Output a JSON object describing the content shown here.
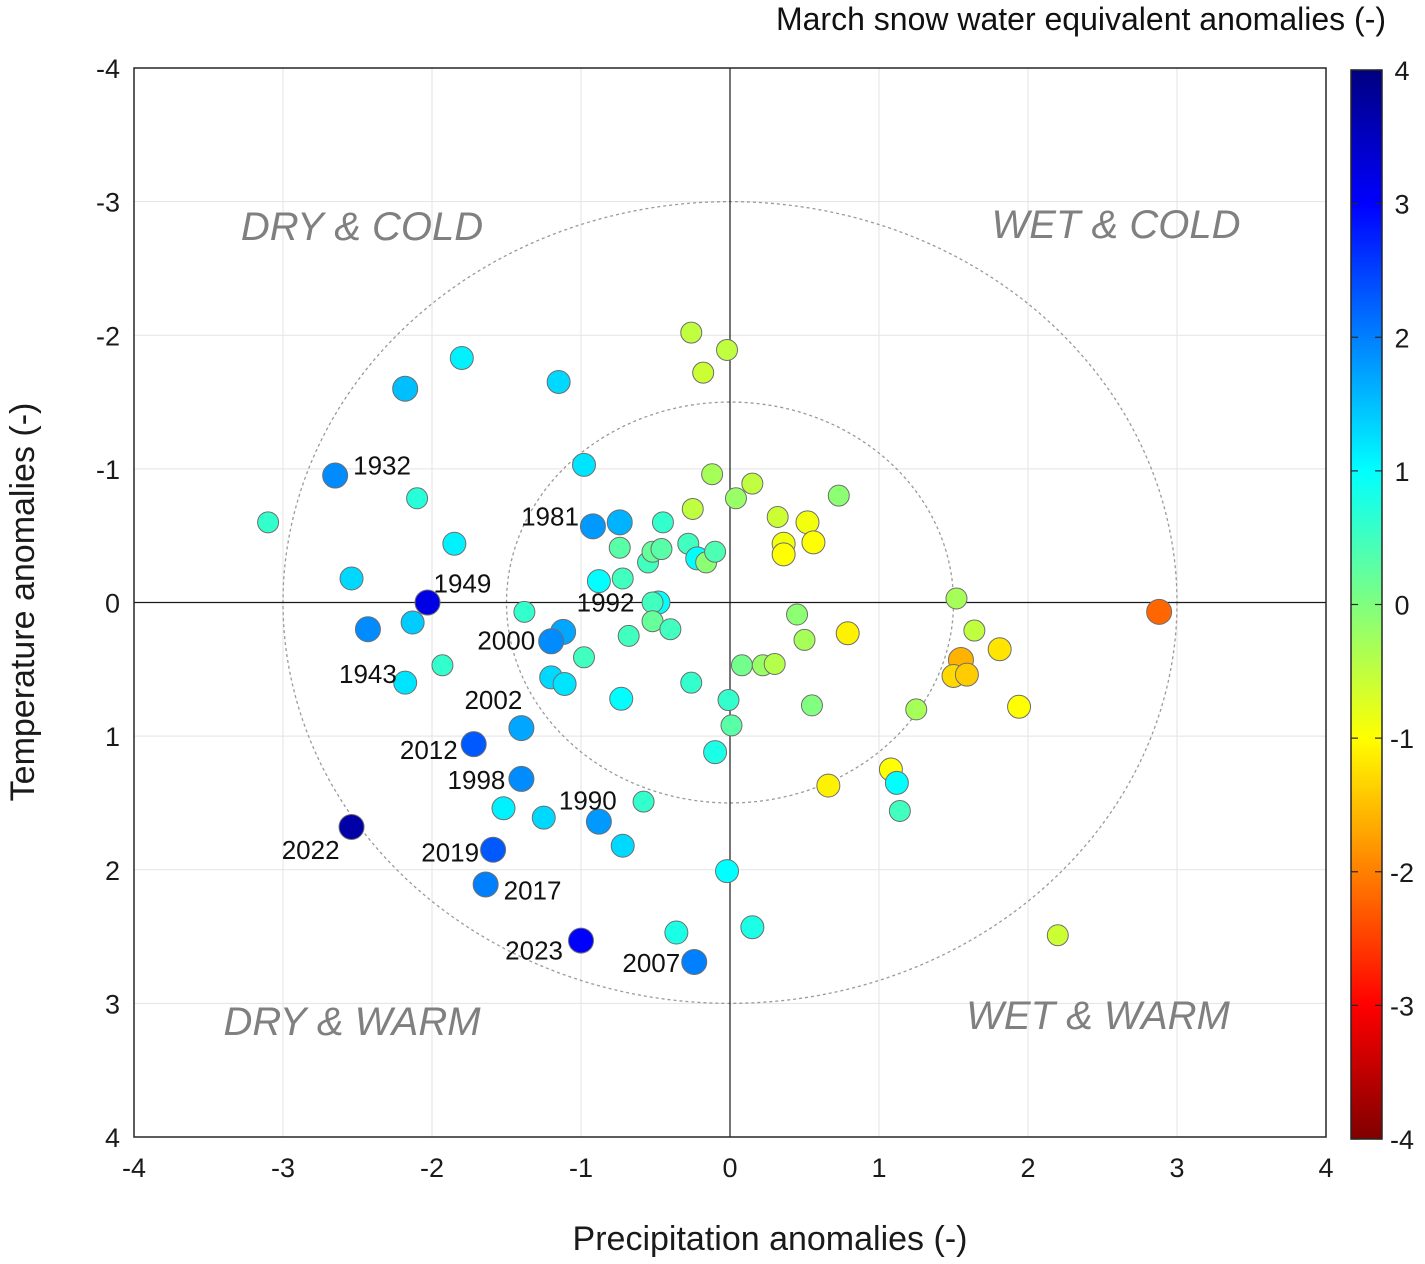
{
  "chart_data": {
    "type": "scatter",
    "xlabel": "Precipitation anomalies (-)",
    "ylabel": "Temperature anomalies (-)",
    "xlim": [
      -4,
      4
    ],
    "ylim": [
      -4,
      4
    ],
    "y_axis_inverted": true,
    "grid": true,
    "xticks": [
      "-4",
      "-3",
      "-2",
      "-1",
      "0",
      "1",
      "2",
      "3",
      "4"
    ],
    "yticks": [
      "-4",
      "-3",
      "-2",
      "-1",
      "0",
      "1",
      "2",
      "3",
      "4"
    ],
    "reference_circles_radius": [
      1.5,
      3
    ],
    "colorbar": {
      "title": "March snow water equivalent anomalies (-)",
      "range": [
        -4,
        4
      ],
      "colormap": "jet",
      "ticks": [
        "4",
        "3",
        "2",
        "1",
        "0",
        "-1",
        "-2",
        "-3",
        "-4"
      ]
    },
    "quadrant_labels": [
      "DRY & COLD",
      "WET & COLD",
      "DRY & WARM",
      "WET & WARM"
    ],
    "annotations": [
      {
        "text": "1932",
        "x": -2.65,
        "y": -0.95
      },
      {
        "text": "1949",
        "x": -2.03,
        "y": 0.0
      },
      {
        "text": "1943",
        "x": -2.43,
        "y": 0.2
      },
      {
        "text": "1981",
        "x": -0.92,
        "y": -0.57
      },
      {
        "text": "1992",
        "x": -0.48,
        "y": 0.0
      },
      {
        "text": "2000",
        "x": -1.2,
        "y": 0.29
      },
      {
        "text": "2002",
        "x": -1.4,
        "y": 0.94
      },
      {
        "text": "2012",
        "x": -1.72,
        "y": 1.06
      },
      {
        "text": "1998",
        "x": -1.4,
        "y": 1.32
      },
      {
        "text": "1990",
        "x": -0.88,
        "y": 1.64
      },
      {
        "text": "2022",
        "x": -2.54,
        "y": 1.68
      },
      {
        "text": "2019",
        "x": -1.59,
        "y": 1.85
      },
      {
        "text": "2017",
        "x": -1.64,
        "y": 2.11
      },
      {
        "text": "2023",
        "x": -1.0,
        "y": 2.53
      },
      {
        "text": "2007",
        "x": -0.24,
        "y": 2.69
      }
    ],
    "points": [
      {
        "x": -3.1,
        "y": -0.6,
        "c": -0.6
      },
      {
        "x": -2.65,
        "y": -0.95,
        "c": -1.9
      },
      {
        "x": -2.54,
        "y": -0.18,
        "c": -1.3
      },
      {
        "x": -2.18,
        "y": -1.6,
        "c": -1.5
      },
      {
        "x": -2.1,
        "y": -0.78,
        "c": -0.7
      },
      {
        "x": -1.8,
        "y": -1.83,
        "c": -1.1
      },
      {
        "x": -1.85,
        "y": -0.44,
        "c": -1.1
      },
      {
        "x": -2.03,
        "y": 0.0,
        "c": -3.2
      },
      {
        "x": -2.43,
        "y": 0.2,
        "c": -1.9
      },
      {
        "x": -2.13,
        "y": 0.15,
        "c": -1.4
      },
      {
        "x": -2.18,
        "y": 0.6,
        "c": -1.2
      },
      {
        "x": -1.93,
        "y": 0.47,
        "c": -0.6
      },
      {
        "x": -1.15,
        "y": -1.65,
        "c": -1.3
      },
      {
        "x": -0.98,
        "y": -1.03,
        "c": -1.2
      },
      {
        "x": -0.92,
        "y": -0.57,
        "c": -1.8
      },
      {
        "x": -0.74,
        "y": -0.6,
        "c": -1.6
      },
      {
        "x": -0.74,
        "y": -0.41,
        "c": -0.3
      },
      {
        "x": -0.45,
        "y": -0.6,
        "c": -0.6
      },
      {
        "x": -0.88,
        "y": -0.16,
        "c": -1.0
      },
      {
        "x": -0.72,
        "y": -0.18,
        "c": -0.5
      },
      {
        "x": -0.55,
        "y": -0.3,
        "c": -0.5
      },
      {
        "x": -0.52,
        "y": -0.38,
        "c": -0.2
      },
      {
        "x": -0.46,
        "y": -0.4,
        "c": -0.3
      },
      {
        "x": -0.48,
        "y": 0.0,
        "c": -1.0
      },
      {
        "x": -0.52,
        "y": 0.0,
        "c": -0.5
      },
      {
        "x": -0.52,
        "y": 0.14,
        "c": -0.2
      },
      {
        "x": -0.4,
        "y": 0.2,
        "c": -0.5
      },
      {
        "x": -0.68,
        "y": 0.25,
        "c": -0.5
      },
      {
        "x": -1.38,
        "y": 0.07,
        "c": -0.6
      },
      {
        "x": -1.12,
        "y": 0.22,
        "c": -1.7
      },
      {
        "x": -1.2,
        "y": 0.29,
        "c": -1.9
      },
      {
        "x": -0.98,
        "y": 0.41,
        "c": -0.5
      },
      {
        "x": -1.2,
        "y": 0.56,
        "c": -1.3
      },
      {
        "x": -1.11,
        "y": 0.61,
        "c": -1.2
      },
      {
        "x": -0.73,
        "y": 0.72,
        "c": -1.0
      },
      {
        "x": -1.4,
        "y": 0.94,
        "c": -1.7
      },
      {
        "x": -1.72,
        "y": 1.06,
        "c": -2.3
      },
      {
        "x": -1.4,
        "y": 1.32,
        "c": -1.9
      },
      {
        "x": -1.52,
        "y": 1.54,
        "c": -1.1
      },
      {
        "x": -1.25,
        "y": 1.61,
        "c": -1.3
      },
      {
        "x": -0.88,
        "y": 1.64,
        "c": -1.8
      },
      {
        "x": -0.72,
        "y": 1.82,
        "c": -1.3
      },
      {
        "x": -0.58,
        "y": 1.49,
        "c": -0.6
      },
      {
        "x": -2.54,
        "y": 1.68,
        "c": -3.7
      },
      {
        "x": -1.59,
        "y": 1.85,
        "c": -2.3
      },
      {
        "x": -1.64,
        "y": 2.11,
        "c": -2.0
      },
      {
        "x": -1.0,
        "y": 2.53,
        "c": -3.0
      },
      {
        "x": -0.24,
        "y": 2.69,
        "c": -2.0
      },
      {
        "x": -0.36,
        "y": 2.47,
        "c": -0.8
      },
      {
        "x": 0.15,
        "y": 2.43,
        "c": -0.8
      },
      {
        "x": -0.02,
        "y": 2.01,
        "c": -1.0
      },
      {
        "x": -0.1,
        "y": 1.12,
        "c": -0.8
      },
      {
        "x": -0.26,
        "y": 0.6,
        "c": -0.6
      },
      {
        "x": -0.01,
        "y": 0.73,
        "c": -0.6
      },
      {
        "x": 0.01,
        "y": 0.92,
        "c": -0.3
      },
      {
        "x": 0.08,
        "y": 0.47,
        "c": -0.1
      },
      {
        "x": 0.22,
        "y": 0.47,
        "c": 0.2
      },
      {
        "x": 0.3,
        "y": 0.46,
        "c": 0.4
      },
      {
        "x": -0.26,
        "y": -2.02,
        "c": 0.5
      },
      {
        "x": -0.02,
        "y": -1.89,
        "c": 0.5
      },
      {
        "x": -0.18,
        "y": -1.72,
        "c": 0.6
      },
      {
        "x": -0.12,
        "y": -0.96,
        "c": 0.3
      },
      {
        "x": 0.15,
        "y": -0.89,
        "c": 0.5
      },
      {
        "x": 0.04,
        "y": -0.78,
        "c": 0.2
      },
      {
        "x": -0.25,
        "y": -0.7,
        "c": 0.5
      },
      {
        "x": 0.73,
        "y": -0.8,
        "c": 0.1
      },
      {
        "x": 0.32,
        "y": -0.64,
        "c": 0.6
      },
      {
        "x": 0.52,
        "y": -0.6,
        "c": 0.9
      },
      {
        "x": 0.36,
        "y": -0.44,
        "c": 0.9
      },
      {
        "x": 0.56,
        "y": -0.45,
        "c": 1.0
      },
      {
        "x": 0.36,
        "y": -0.36,
        "c": 1.0
      },
      {
        "x": -0.28,
        "y": -0.44,
        "c": -0.5
      },
      {
        "x": -0.22,
        "y": -0.33,
        "c": -1.0
      },
      {
        "x": -0.16,
        "y": -0.3,
        "c": 0.1
      },
      {
        "x": -0.1,
        "y": -0.38,
        "c": -0.4
      },
      {
        "x": 0.45,
        "y": 0.09,
        "c": 0.1
      },
      {
        "x": 0.5,
        "y": 0.28,
        "c": 0.3
      },
      {
        "x": 0.79,
        "y": 0.23,
        "c": 1.1
      },
      {
        "x": 0.55,
        "y": 0.77,
        "c": 0.0
      },
      {
        "x": 1.52,
        "y": -0.03,
        "c": 0.3
      },
      {
        "x": 1.64,
        "y": 0.21,
        "c": 0.5
      },
      {
        "x": 1.55,
        "y": 0.43,
        "c": 1.6
      },
      {
        "x": 1.5,
        "y": 0.55,
        "c": 1.3
      },
      {
        "x": 1.59,
        "y": 0.54,
        "c": 1.4
      },
      {
        "x": 1.81,
        "y": 0.35,
        "c": 1.2
      },
      {
        "x": 1.94,
        "y": 0.78,
        "c": 1.0
      },
      {
        "x": 1.25,
        "y": 0.8,
        "c": 0.3
      },
      {
        "x": 0.66,
        "y": 1.37,
        "c": 1.1
      },
      {
        "x": 1.08,
        "y": 1.25,
        "c": 1.0
      },
      {
        "x": 1.12,
        "y": 1.35,
        "c": -1.0
      },
      {
        "x": 1.14,
        "y": 1.56,
        "c": -0.5
      },
      {
        "x": 2.2,
        "y": 2.49,
        "c": 0.6
      },
      {
        "x": 2.88,
        "y": 0.07,
        "c": 2.2
      }
    ]
  }
}
